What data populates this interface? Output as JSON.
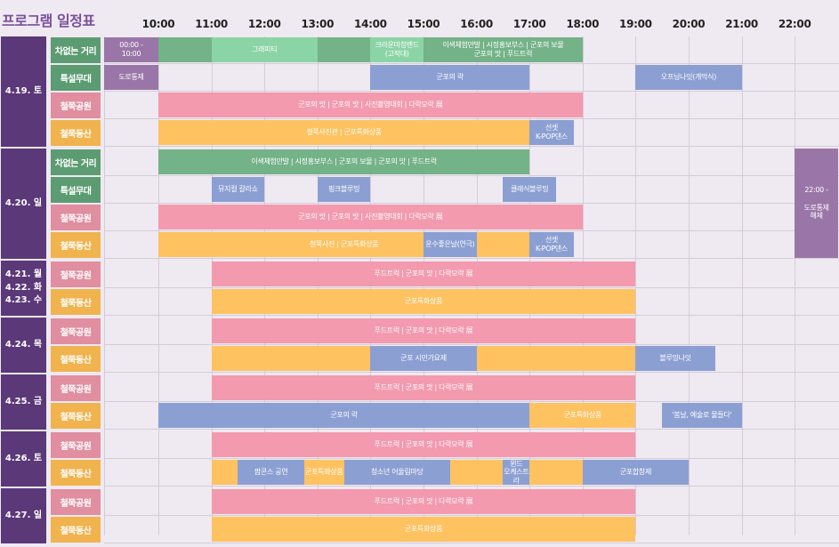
{
  "title": "프로그램 일정표",
  "colors": {
    "date": "#5b3878",
    "venue_green": "#5c9c72",
    "venue_pink": "#e08ea0",
    "venue_orange": "#f1b34e",
    "green": "#74b288",
    "green_light": "#8bd4a5",
    "blue": "#8c9fd3",
    "pink": "#f39aae",
    "orange": "#fec261",
    "purple": "#9a76a8",
    "grid": "#d4cdd8",
    "background": "#efe9f1"
  },
  "time_labels": [
    "10:00",
    "11:00",
    "12:00",
    "13:00",
    "14:00",
    "15:00",
    "16:00",
    "17:00",
    "18:00",
    "19:00",
    "20:00",
    "21:00",
    "22:00"
  ],
  "days": [
    {
      "label": "4.19. 토",
      "rows": [
        {
          "venue": "차없는 거리",
          "color": "green",
          "events": [
            {
              "label": "00:00 - \n10:00",
              "start": 9.0,
              "end": 10.0,
              "color": "purple"
            },
            {
              "label": "",
              "start": 10.0,
              "end": 18.0,
              "color": "green"
            },
            {
              "label": "그래피티",
              "start": 11.0,
              "end": 13.0,
              "color": "green_light"
            },
            {
              "label": "크라운마칭밴드\n(고적대)",
              "start": 14.0,
              "end": 15.0,
              "color": "green_light"
            },
            {
              "label": "이색체험만발 | 시정홍보부스 | 군포의 보물\n군포의 맛 | 푸드트럭",
              "start": 15.0,
              "end": 18.0,
              "color": "green"
            }
          ]
        },
        {
          "venue": "특설무대",
          "color": "green",
          "events": [
            {
              "label": "도로통제",
              "start": 9.0,
              "end": 10.0,
              "color": "purple"
            },
            {
              "label": "군포의 락",
              "start": 14.0,
              "end": 17.0,
              "color": "blue"
            },
            {
              "label": "오프닝나잇(개막식)",
              "start": 19.0,
              "end": 21.0,
              "color": "blue"
            }
          ]
        },
        {
          "venue": "철쭉공원",
          "color": "pink",
          "events": [
            {
              "label": "군포의 맛 | 군포의 맛 | 사진촬영대회 | 다락모락 展",
              "start": 10.0,
              "end": 18.0,
              "color": "pink"
            }
          ]
        },
        {
          "venue": "철쭉동산",
          "color": "orange",
          "events": [
            {
              "label": "철쭉사진관 | 군포특화상품",
              "start": 10.0,
              "end": 17.0,
              "color": "orange"
            },
            {
              "label": "선셋\nK-POP댄스",
              "start": 17.0,
              "end": 17.83,
              "color": "blue"
            }
          ]
        }
      ]
    },
    {
      "label": "4.20. 일",
      "rows": [
        {
          "venue": "차없는 거리",
          "color": "green",
          "events": [
            {
              "label": "이색체험만발 | 시정홍보부스 | 군포의 보물 | 군포의 맛 | 푸드트럭",
              "start": 10.0,
              "end": 17.0,
              "color": "green"
            }
          ]
        },
        {
          "venue": "특설무대",
          "color": "green",
          "events": [
            {
              "label": "뮤지컬 갈라쇼",
              "start": 11.0,
              "end": 12.0,
              "color": "blue"
            },
            {
              "label": "핑크블루밍",
              "start": 13.0,
              "end": 14.0,
              "color": "blue"
            },
            {
              "label": "클래식블루밍",
              "start": 16.5,
              "end": 17.5,
              "color": "blue"
            }
          ]
        },
        {
          "venue": "철쭉공원",
          "color": "pink",
          "events": [
            {
              "label": "군포의 맛 | 군포의 맛 | 사진촬영대회 | 다락모락 展",
              "start": 10.0,
              "end": 18.0,
              "color": "pink"
            }
          ]
        },
        {
          "venue": "철쭉동산",
          "color": "orange",
          "events": [
            {
              "label": "철쭉사진 | 군포특화상품",
              "start": 10.0,
              "end": 17.0,
              "color": "orange"
            },
            {
              "label": "운수좋은날(연극)",
              "start": 15.0,
              "end": 16.0,
              "color": "blue"
            },
            {
              "label": "선셋\nK-POP댄스",
              "start": 17.0,
              "end": 17.83,
              "color": "blue"
            }
          ]
        }
      ]
    },
    {
      "label": "4.21. 월\n4.22. 화\n4.23. 수",
      "rows": [
        {
          "venue": "철쭉공원",
          "color": "pink",
          "events": [
            {
              "label": "푸드트럭 | 군포의 맛 | 다락모락 展",
              "start": 11.0,
              "end": 19.0,
              "color": "pink"
            }
          ]
        },
        {
          "venue": "철쭉동산",
          "color": "orange",
          "events": [
            {
              "label": "군포특화상품",
              "start": 11.0,
              "end": 19.0,
              "color": "orange"
            }
          ]
        }
      ]
    },
    {
      "label": "4.24. 목",
      "rows": [
        {
          "venue": "철쭉공원",
          "color": "pink",
          "events": [
            {
              "label": "푸드트럭 | 군포의 맛 | 다락모락 展",
              "start": 11.0,
              "end": 19.0,
              "color": "pink"
            }
          ]
        },
        {
          "venue": "철쭉동산",
          "color": "orange",
          "events": [
            {
              "label": "군포특화상품",
              "start": 11.0,
              "end": 19.0,
              "color": "orange"
            },
            {
              "label": "군포 시민가요제",
              "start": 14.0,
              "end": 16.0,
              "color": "blue"
            },
            {
              "label": "블루밍나잇",
              "start": 19.0,
              "end": 20.5,
              "color": "blue"
            }
          ]
        }
      ]
    },
    {
      "label": "4.25. 금",
      "rows": [
        {
          "venue": "철쭉공원",
          "color": "pink",
          "events": [
            {
              "label": "푸드트럭 | 군포의 맛 | 다락모락 展",
              "start": 11.0,
              "end": 19.0,
              "color": "pink"
            }
          ]
        },
        {
          "venue": "철쭉동산",
          "color": "orange",
          "events": [
            {
              "label": "군포의 락",
              "start": 10.0,
              "end": 17.0,
              "color": "blue"
            },
            {
              "label": "군포특화상품",
              "start": 17.0,
              "end": 19.0,
              "color": "orange"
            },
            {
              "label": "'봄날, 예술로 물들다'",
              "start": 19.5,
              "end": 21.0,
              "color": "blue"
            }
          ]
        }
      ]
    },
    {
      "label": "4.26. 토",
      "rows": [
        {
          "venue": "철쭉공원",
          "color": "pink",
          "events": [
            {
              "label": "푸드트럭 | 군포의 맛 | 다락모락 展",
              "start": 11.0,
              "end": 19.0,
              "color": "pink"
            }
          ]
        },
        {
          "venue": "철쭉동산",
          "color": "orange",
          "events": [
            {
              "label": "",
              "start": 11.0,
              "end": 19.0,
              "color": "orange"
            },
            {
              "label": "팝콘스 공연",
              "start": 11.5,
              "end": 12.75,
              "color": "blue"
            },
            {
              "label": "군포특화상품",
              "start": 12.75,
              "end": 13.5,
              "color": "orange"
            },
            {
              "label": "청소년 어울림마당",
              "start": 13.5,
              "end": 15.5,
              "color": "blue"
            },
            {
              "label": "",
              "start": 15.5,
              "end": 16.5,
              "color": "orange"
            },
            {
              "label": "윈드\n오케스트라",
              "start": 16.5,
              "end": 17.0,
              "color": "blue"
            },
            {
              "label": "",
              "start": 17.0,
              "end": 18.0,
              "color": "orange"
            },
            {
              "label": "군포합창제",
              "start": 18.0,
              "end": 20.0,
              "color": "blue"
            }
          ]
        }
      ]
    },
    {
      "label": "4.27. 일",
      "rows": [
        {
          "venue": "철쭉공원",
          "color": "pink",
          "events": [
            {
              "label": "푸드트럭 | 군포의 맛 | 다락모락 展",
              "start": 11.0,
              "end": 19.0,
              "color": "pink"
            }
          ]
        },
        {
          "venue": "철쭉동산",
          "color": "orange",
          "events": [
            {
              "label": "군포특화상품",
              "start": 11.0,
              "end": 19.0,
              "color": "orange"
            }
          ]
        }
      ]
    }
  ],
  "overnight": {
    "label": "22:00 -\n\n도로통제\n해제",
    "start": 22.0,
    "end": 22.83,
    "color": "purple"
  }
}
